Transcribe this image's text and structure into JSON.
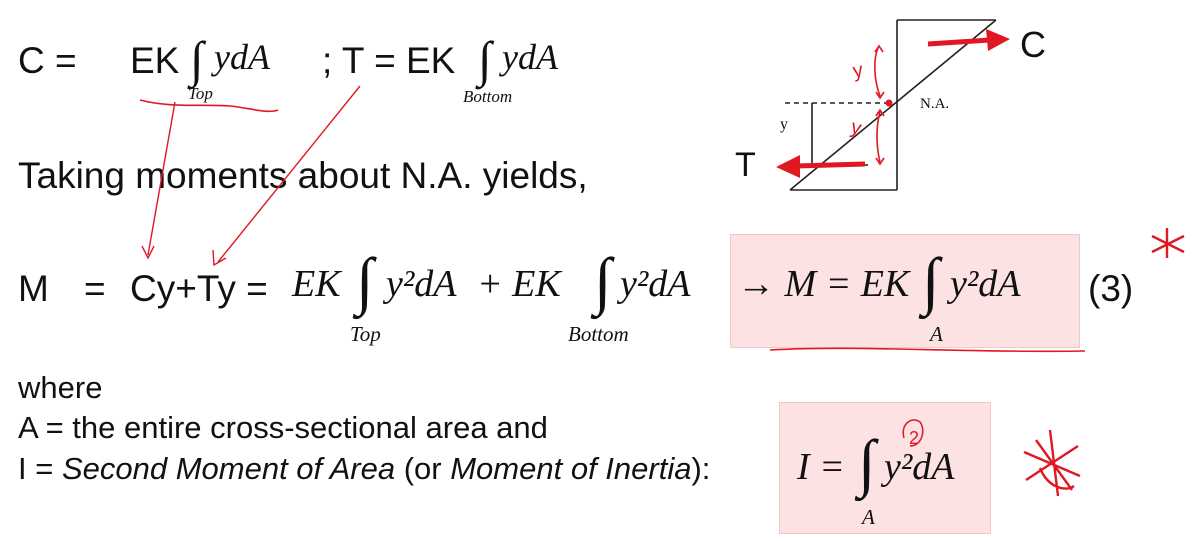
{
  "line1": {
    "c_lhs": "C =",
    "ek1": "EK",
    "ydA": "ydA",
    "top_label": "Top",
    "semicolon_t": "; T = EK",
    "ydA2": "ydA",
    "bottom_label": "Bottom"
  },
  "line2": {
    "text": "Taking moments about N.A. yields,"
  },
  "line3": {
    "m": "M",
    "eq": "=",
    "cy_ty": "Cy+Ty =",
    "ek_a": "EK",
    "integrand_a": "y²dA",
    "plus_ek": "+ EK",
    "integrand_b": "y²dA",
    "top_label": "Top",
    "bottom_label": "Bottom",
    "result": "→ M = EK",
    "result_integrand": "y²dA",
    "result_limit": "A",
    "eq_number": "(3)"
  },
  "where": {
    "word": "where",
    "line_a": "A = the entire cross-sectional area and",
    "line_i_prefix": "I = ",
    "line_i_italic1": "Second Moment of Area",
    "line_i_mid": " (or ",
    "line_i_italic2": "Moment of Inertia",
    "line_i_suffix": "):",
    "inertia_lhs": "I =",
    "inertia_integrand": "y²dA",
    "inertia_limit": "A"
  },
  "diagram": {
    "c_label": "C",
    "t_label": "T",
    "na_label": "N.A.",
    "y_label": "y",
    "annot_y_top": "y",
    "annot_y_bottom": "y"
  },
  "annotation": {
    "circled_exponent": "2"
  },
  "colors": {
    "ink": "#111111",
    "red": "#e01822",
    "pink": "#fde2e4"
  }
}
